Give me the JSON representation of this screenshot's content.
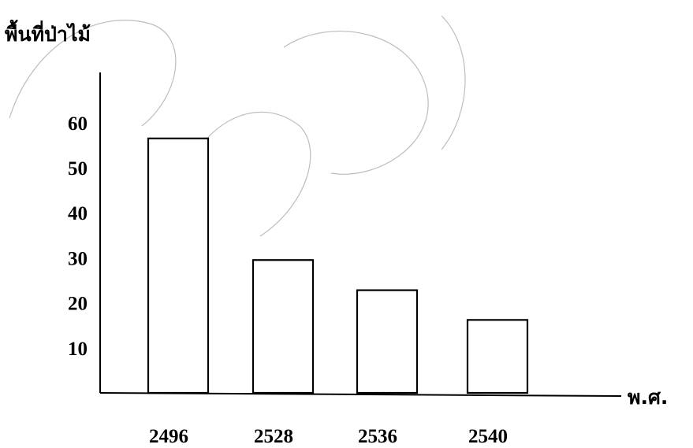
{
  "chart_data": {
    "type": "bar",
    "ylabel": "พื้นที่ป่าไม้",
    "xlabel": "พ.ศ.",
    "categories": [
      "2496",
      "2528",
      "2536",
      "2540"
    ],
    "values": [
      56.5,
      29.5,
      22.8,
      16.2
    ],
    "ylim": [
      0,
      70
    ],
    "yticks": [
      10,
      20,
      30,
      40,
      50,
      60
    ],
    "grid": false,
    "legend": "none",
    "colors": {
      "bar_fill": "#ffffff",
      "bar_stroke": "#000000",
      "axis": "#000000"
    }
  }
}
